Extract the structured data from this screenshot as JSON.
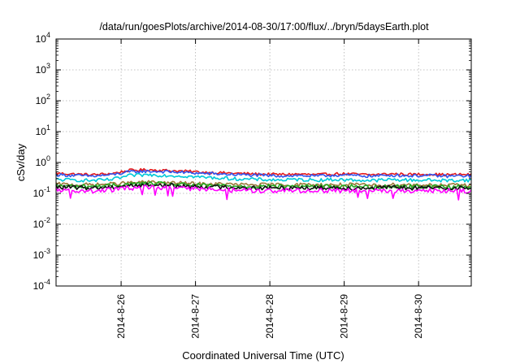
{
  "chart_data": {
    "type": "line",
    "title": "/data/run/goesPlots/archive/2014-08-30/17:00/flux/../bryn/5daysEarth.plot",
    "xlabel": "Coordinated Universal Time (UTC)",
    "ylabel": "cSv/day",
    "yscale": "log",
    "ylim": [
      0.0001,
      10000
    ],
    "xlim": [
      "2014-08-25 03:00",
      "2014-08-30 17:00"
    ],
    "grid": true,
    "legend": "none",
    "y_ticks": [
      {
        "value": 0.0001,
        "base": "10",
        "exp": "-4"
      },
      {
        "value": 0.001,
        "base": "10",
        "exp": "-3"
      },
      {
        "value": 0.01,
        "base": "10",
        "exp": "-2"
      },
      {
        "value": 0.1,
        "base": "10",
        "exp": "-1"
      },
      {
        "value": 1,
        "base": "10",
        "exp": "0"
      },
      {
        "value": 10,
        "base": "10",
        "exp": "1"
      },
      {
        "value": 100,
        "base": "10",
        "exp": "2"
      },
      {
        "value": 1000,
        "base": "10",
        "exp": "3"
      },
      {
        "value": 10000,
        "base": "10",
        "exp": "4"
      }
    ],
    "x_ticks": [
      {
        "value": "2014-08-26",
        "label": "2014-8-26"
      },
      {
        "value": "2014-08-27",
        "label": "2014-8-27"
      },
      {
        "value": "2014-08-28",
        "label": "2014-8-28"
      },
      {
        "value": "2014-08-29",
        "label": "2014-8-29"
      },
      {
        "value": "2014-08-30",
        "label": "2014-8-30"
      }
    ],
    "x": [
      "2014-08-25 03:00",
      "2014-08-25 09:00",
      "2014-08-25 15:00",
      "2014-08-25 21:00",
      "2014-08-26 03:00",
      "2014-08-26 09:00",
      "2014-08-26 15:00",
      "2014-08-26 21:00",
      "2014-08-27 03:00",
      "2014-08-27 09:00",
      "2014-08-27 15:00",
      "2014-08-27 21:00",
      "2014-08-28 03:00",
      "2014-08-28 09:00",
      "2014-08-28 15:00",
      "2014-08-28 21:00",
      "2014-08-29 03:00",
      "2014-08-29 09:00",
      "2014-08-29 15:00",
      "2014-08-29 21:00",
      "2014-08-30 03:00",
      "2014-08-30 09:00",
      "2014-08-30 15:00",
      "2014-08-30 17:00"
    ],
    "series": [
      {
        "color": "#e41a1c",
        "values": [
          0.45,
          0.42,
          0.4,
          0.44,
          0.56,
          0.58,
          0.55,
          0.52,
          0.48,
          0.46,
          0.44,
          0.42,
          0.41,
          0.42,
          0.4,
          0.43,
          0.42,
          0.4,
          0.43,
          0.41,
          0.42,
          0.4,
          0.41,
          0.4
        ]
      },
      {
        "color": "#3355ee",
        "values": [
          0.4,
          0.38,
          0.36,
          0.4,
          0.5,
          0.52,
          0.5,
          0.47,
          0.44,
          0.42,
          0.4,
          0.38,
          0.37,
          0.38,
          0.36,
          0.39,
          0.38,
          0.36,
          0.39,
          0.37,
          0.38,
          0.36,
          0.37,
          0.36
        ]
      },
      {
        "color": "#00c8d8",
        "values": [
          0.28,
          0.27,
          0.26,
          0.28,
          0.38,
          0.4,
          0.38,
          0.36,
          0.33,
          0.31,
          0.29,
          0.28,
          0.27,
          0.28,
          0.27,
          0.28,
          0.27,
          0.26,
          0.28,
          0.27,
          0.27,
          0.26,
          0.27,
          0.26
        ]
      },
      {
        "color": "#9a7a3a",
        "values": [
          0.2,
          0.19,
          0.19,
          0.2,
          0.22,
          0.23,
          0.22,
          0.21,
          0.2,
          0.2,
          0.19,
          0.19,
          0.19,
          0.19,
          0.19,
          0.19,
          0.19,
          0.18,
          0.19,
          0.19,
          0.19,
          0.18,
          0.19,
          0.18
        ]
      },
      {
        "color": "#22aa22",
        "values": [
          0.18,
          0.17,
          0.17,
          0.18,
          0.2,
          0.21,
          0.2,
          0.19,
          0.18,
          0.18,
          0.17,
          0.17,
          0.17,
          0.17,
          0.17,
          0.17,
          0.17,
          0.16,
          0.17,
          0.17,
          0.17,
          0.16,
          0.17,
          0.16
        ]
      },
      {
        "color": "#111111",
        "values": [
          0.16,
          0.155,
          0.15,
          0.16,
          0.18,
          0.19,
          0.18,
          0.17,
          0.165,
          0.16,
          0.155,
          0.15,
          0.15,
          0.155,
          0.15,
          0.155,
          0.15,
          0.15,
          0.155,
          0.15,
          0.15,
          0.15,
          0.15,
          0.15
        ]
      },
      {
        "color": "#ff00ff",
        "values": [
          0.13,
          0.12,
          0.12,
          0.13,
          0.15,
          0.155,
          0.15,
          0.14,
          0.135,
          0.13,
          0.125,
          0.12,
          0.12,
          0.125,
          0.12,
          0.125,
          0.12,
          0.12,
          0.125,
          0.12,
          0.12,
          0.12,
          0.12,
          0.12
        ]
      }
    ]
  }
}
